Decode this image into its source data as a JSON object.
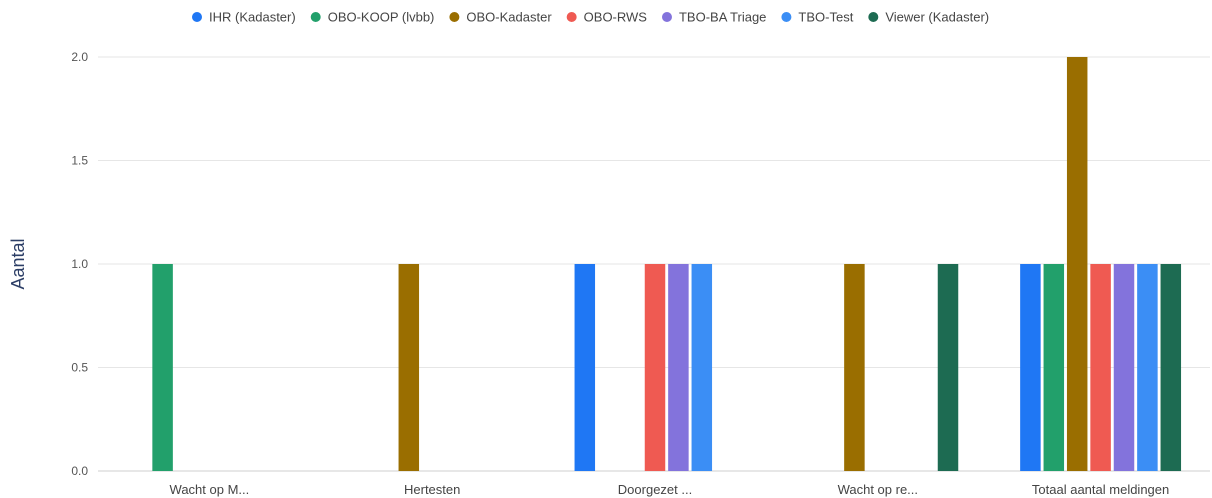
{
  "chart_data": {
    "type": "bar",
    "ylabel": "Aantal",
    "xlabel": "",
    "ylim": [
      0,
      2
    ],
    "yticks": [
      "0.0",
      "0.5",
      "1.0",
      "1.5",
      "2.0"
    ],
    "grid": true,
    "legend_position": "top",
    "categories": [
      "Wacht op M...",
      "Hertesten",
      "Doorgezet ...",
      "Wacht op re...",
      "Totaal aantal meldingen"
    ],
    "series": [
      {
        "name": "IHR (Kadaster)",
        "color": "#1f77f4",
        "values": [
          0,
          0,
          1,
          0,
          1
        ]
      },
      {
        "name": "OBO-KOOP (lvbb)",
        "color": "#22a06b",
        "values": [
          1,
          0,
          0,
          0,
          1
        ]
      },
      {
        "name": "OBO-Kadaster",
        "color": "#9a6e00",
        "values": [
          0,
          1,
          0,
          1,
          2
        ]
      },
      {
        "name": "OBO-RWS",
        "color": "#ef5a52",
        "values": [
          0,
          0,
          1,
          0,
          1
        ]
      },
      {
        "name": "TBO-BA Triage",
        "color": "#8373dc",
        "values": [
          0,
          0,
          1,
          0,
          1
        ]
      },
      {
        "name": "TBO-Test",
        "color": "#3b8ef5",
        "values": [
          0,
          0,
          1,
          0,
          1
        ]
      },
      {
        "name": "Viewer (Kadaster)",
        "color": "#1d6b52",
        "values": [
          0,
          0,
          0,
          1,
          1
        ]
      }
    ]
  }
}
